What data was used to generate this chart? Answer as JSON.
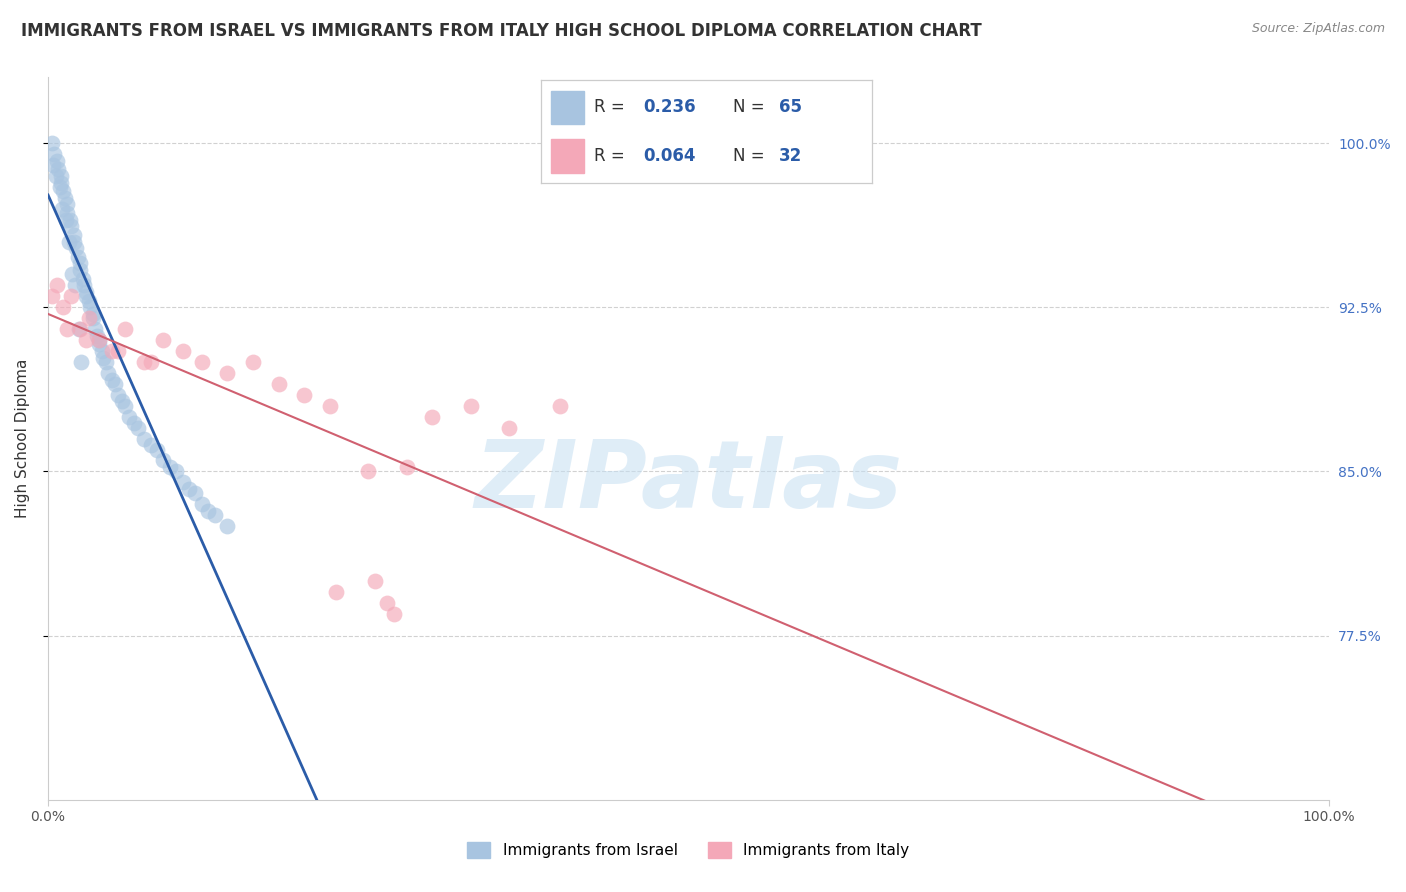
{
  "title": "IMMIGRANTS FROM ISRAEL VS IMMIGRANTS FROM ITALY HIGH SCHOOL DIPLOMA CORRELATION CHART",
  "source": "Source: ZipAtlas.com",
  "ylabel": "High School Diploma",
  "y_tick_vals": [
    77.5,
    85.0,
    92.5,
    100.0
  ],
  "y_right_labels": [
    "77.5%",
    "85.0%",
    "92.5%",
    "100.0%"
  ],
  "x_tick_vals": [
    0,
    100
  ],
  "x_tick_labels": [
    "0.0%",
    "100.0%"
  ],
  "xlim": [
    0,
    100
  ],
  "ylim": [
    70.0,
    103.0
  ],
  "watermark_text": "ZIPatlas",
  "background_color": "#ffffff",
  "grid_color": "#cccccc",
  "blue_scatter_color": "#a8c4e0",
  "blue_line_color": "#2b5ca8",
  "pink_scatter_color": "#f4a8b8",
  "pink_line_color": "#d06070",
  "israel_R": 0.236,
  "israel_N": 65,
  "italy_R": 0.064,
  "italy_N": 32,
  "israel_label": "Immigrants from Israel",
  "italy_label": "Immigrants from Italy",
  "legend_R_color": "#000000",
  "legend_N_color": "#2b5ca8",
  "title_fontsize": 12,
  "source_fontsize": 9,
  "tick_fontsize": 10,
  "ylabel_fontsize": 11,
  "legend_fontsize": 11,
  "israel_x": [
    0.3,
    0.5,
    0.7,
    0.8,
    1.0,
    1.0,
    1.2,
    1.3,
    1.5,
    1.5,
    1.7,
    1.8,
    2.0,
    2.0,
    2.2,
    2.3,
    2.5,
    2.5,
    2.7,
    2.8,
    3.0,
    3.0,
    3.2,
    3.3,
    3.5,
    3.5,
    3.7,
    3.8,
    4.0,
    4.0,
    4.2,
    4.3,
    4.5,
    4.7,
    5.0,
    5.2,
    5.5,
    5.8,
    6.0,
    6.3,
    6.7,
    7.0,
    7.5,
    8.0,
    8.5,
    9.0,
    9.5,
    10.0,
    10.5,
    11.0,
    11.5,
    12.0,
    12.5,
    13.0,
    14.0,
    0.4,
    0.6,
    0.9,
    1.1,
    1.4,
    1.6,
    1.9,
    2.1,
    2.4,
    2.6
  ],
  "israel_y": [
    100.0,
    99.5,
    99.2,
    98.8,
    98.5,
    98.2,
    97.8,
    97.5,
    97.2,
    96.8,
    96.5,
    96.2,
    95.8,
    95.5,
    95.2,
    94.8,
    94.5,
    94.2,
    93.8,
    93.5,
    93.2,
    93.0,
    92.8,
    92.5,
    92.2,
    92.0,
    91.5,
    91.2,
    91.0,
    90.8,
    90.5,
    90.2,
    90.0,
    89.5,
    89.2,
    89.0,
    88.5,
    88.2,
    88.0,
    87.5,
    87.2,
    87.0,
    86.5,
    86.2,
    86.0,
    85.5,
    85.2,
    85.0,
    84.5,
    84.2,
    84.0,
    83.5,
    83.2,
    83.0,
    82.5,
    99.0,
    98.5,
    98.0,
    97.0,
    96.5,
    95.5,
    94.0,
    93.5,
    91.5,
    90.0
  ],
  "italy_x": [
    0.3,
    0.7,
    1.2,
    1.8,
    2.5,
    3.2,
    4.0,
    5.0,
    6.0,
    7.5,
    9.0,
    10.5,
    12.0,
    14.0,
    16.0,
    18.0,
    20.0,
    22.0,
    25.0,
    28.0,
    30.0,
    33.0,
    36.0,
    40.0,
    1.5,
    3.0,
    5.5,
    8.0,
    22.5,
    25.5,
    26.5,
    27.0
  ],
  "italy_y": [
    93.0,
    93.5,
    92.5,
    93.0,
    91.5,
    92.0,
    91.0,
    90.5,
    91.5,
    90.0,
    91.0,
    90.5,
    90.0,
    89.5,
    90.0,
    89.0,
    88.5,
    88.0,
    85.0,
    85.2,
    87.5,
    88.0,
    87.0,
    88.0,
    91.5,
    91.0,
    90.5,
    90.0,
    79.5,
    80.0,
    79.0,
    78.5
  ]
}
